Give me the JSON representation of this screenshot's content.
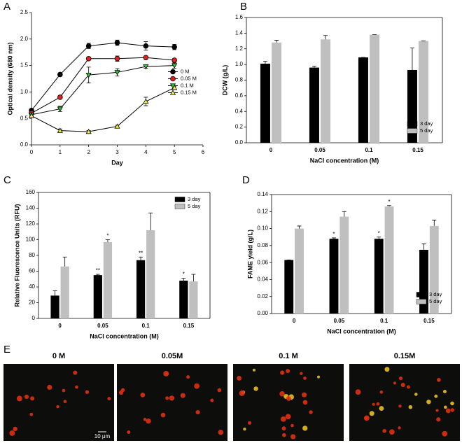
{
  "chart_data": [
    {
      "type": "line",
      "panel": "A",
      "xlabel": "Day",
      "ylabel": "Optical density (680 nm)",
      "x": [
        0,
        1,
        2,
        3,
        4,
        5
      ],
      "xlim": [
        0,
        6
      ],
      "xticks": [
        0,
        1,
        2,
        3,
        4,
        5,
        6
      ],
      "ylim": [
        0,
        2.5
      ],
      "yticks": [
        {
          "value": 0,
          "label": "0.0"
        },
        {
          "value": 0.5,
          "label": "0.5"
        },
        {
          "value": 1,
          "label": "1.0"
        },
        {
          "value": 1.5,
          "label": "1.5"
        },
        {
          "value": 2,
          "label": "2.0"
        },
        {
          "value": 2.5,
          "label": "2.5"
        }
      ],
      "legend": "center right",
      "series": [
        {
          "name": "0 M",
          "color": "#000000",
          "marker": "circle",
          "values": [
            0.65,
            1.33,
            1.87,
            1.93,
            1.87,
            1.85
          ],
          "errors": [
            0.03,
            0.03,
            0.05,
            0.05,
            0.08,
            0.05
          ]
        },
        {
          "name": "0.05 M",
          "color": "#e02020",
          "marker": "circle",
          "values": [
            0.6,
            0.9,
            1.63,
            1.63,
            1.65,
            1.6
          ],
          "errors": [
            0.02,
            0.03,
            0.03,
            0.05,
            0.03,
            0.03
          ]
        },
        {
          "name": "0.1 M",
          "color": "#30c030",
          "marker": "triangle-down",
          "values": [
            0.57,
            0.68,
            1.32,
            1.37,
            1.48,
            1.5
          ],
          "errors": [
            0.02,
            0.05,
            0.15,
            0.07,
            0.03,
            0.05
          ]
        },
        {
          "name": "0.15 M",
          "color": "#f0f040",
          "marker": "triangle-up",
          "values": [
            0.55,
            0.27,
            0.25,
            0.35,
            0.82,
            1.08
          ],
          "errors": [
            0.02,
            0.03,
            0.02,
            0.02,
            0.08,
            0.03
          ]
        }
      ]
    },
    {
      "type": "bar",
      "panel": "B",
      "xlabel": "NaCl concentration (M)",
      "ylabel": "DCW (g/L)",
      "categories": [
        "0",
        "0.05",
        "0.1",
        "0.15"
      ],
      "ylim": [
        0,
        1.6
      ],
      "yticks": [
        {
          "value": 0,
          "label": "0.0"
        },
        {
          "value": 0.2,
          "label": "0.2"
        },
        {
          "value": 0.4,
          "label": "0.4"
        },
        {
          "value": 0.6,
          "label": "0.6"
        },
        {
          "value": 0.8,
          "label": "0.8"
        },
        {
          "value": 1,
          "label": "1.0"
        },
        {
          "value": 1.2,
          "label": "1.2"
        },
        {
          "value": 1.4,
          "label": "1.4"
        },
        {
          "value": 1.6,
          "label": "1.6"
        }
      ],
      "legend": "lower right",
      "series": [
        {
          "name": "3 day",
          "color": "#000000",
          "values": [
            1.01,
            0.96,
            1.09,
            0.93
          ],
          "errors": [
            0.03,
            0.02,
            0,
            0.28
          ]
        },
        {
          "name": "5 day",
          "color": "#bfbfbf",
          "values": [
            1.28,
            1.32,
            1.38,
            1.3
          ],
          "errors": [
            0.03,
            0.05,
            0,
            0
          ]
        }
      ]
    },
    {
      "type": "bar",
      "panel": "C",
      "xlabel": "NaCl concentration (M)",
      "ylabel": "Relative Fluorescence Units (RFU)",
      "categories": [
        "0",
        "0.05",
        "0.1",
        "0.15"
      ],
      "ylim": [
        0,
        160
      ],
      "yticks": [
        0,
        20,
        40,
        60,
        80,
        100,
        120,
        140,
        160
      ],
      "legend": "upper right",
      "series": [
        {
          "name": "3 day",
          "color": "#000000",
          "values": [
            29,
            55,
            74,
            48
          ],
          "errors": [
            6,
            1,
            4,
            3
          ],
          "stars": [
            null,
            "**",
            "**",
            "*"
          ]
        },
        {
          "name": "5 day",
          "color": "#bfbfbf",
          "values": [
            66,
            97,
            112,
            47
          ],
          "errors": [
            12,
            3,
            22,
            9
          ],
          "stars": [
            null,
            "*",
            null,
            null
          ]
        }
      ]
    },
    {
      "type": "bar",
      "panel": "D",
      "xlabel": "NaCl concentration (M)",
      "ylabel": "FAME yield (g/L)",
      "categories": [
        "0",
        "0.05",
        "0.1",
        "0.15"
      ],
      "ylim": [
        0,
        0.14
      ],
      "yticks": [
        {
          "value": 0,
          "label": "0.00"
        },
        {
          "value": 0.02,
          "label": "0.02"
        },
        {
          "value": 0.04,
          "label": "0.04"
        },
        {
          "value": 0.06,
          "label": "0.06"
        },
        {
          "value": 0.08,
          "label": "0.08"
        },
        {
          "value": 0.1,
          "label": "0.10"
        },
        {
          "value": 0.12,
          "label": "0.12"
        },
        {
          "value": 0.14,
          "label": "0.14"
        }
      ],
      "legend": "lower right",
      "series": [
        {
          "name": "3 day",
          "color": "#000000",
          "values": [
            0.063,
            0.088,
            0.088,
            0.075
          ],
          "errors": [
            0,
            0.001,
            0.002,
            0.007
          ],
          "stars": [
            null,
            "*",
            "*",
            null
          ]
        },
        {
          "name": "5 day",
          "color": "#bfbfbf",
          "values": [
            0.1,
            0.114,
            0.126,
            0.103
          ],
          "errors": [
            0.003,
            0.006,
            0.001,
            0.007
          ],
          "stars": [
            null,
            null,
            "*",
            null
          ]
        }
      ]
    }
  ],
  "micrographs": {
    "panel": "E",
    "labels": [
      "0 M",
      "0.05M",
      "0.1 M",
      "0.15M"
    ],
    "scale_bar": "10 μm"
  }
}
